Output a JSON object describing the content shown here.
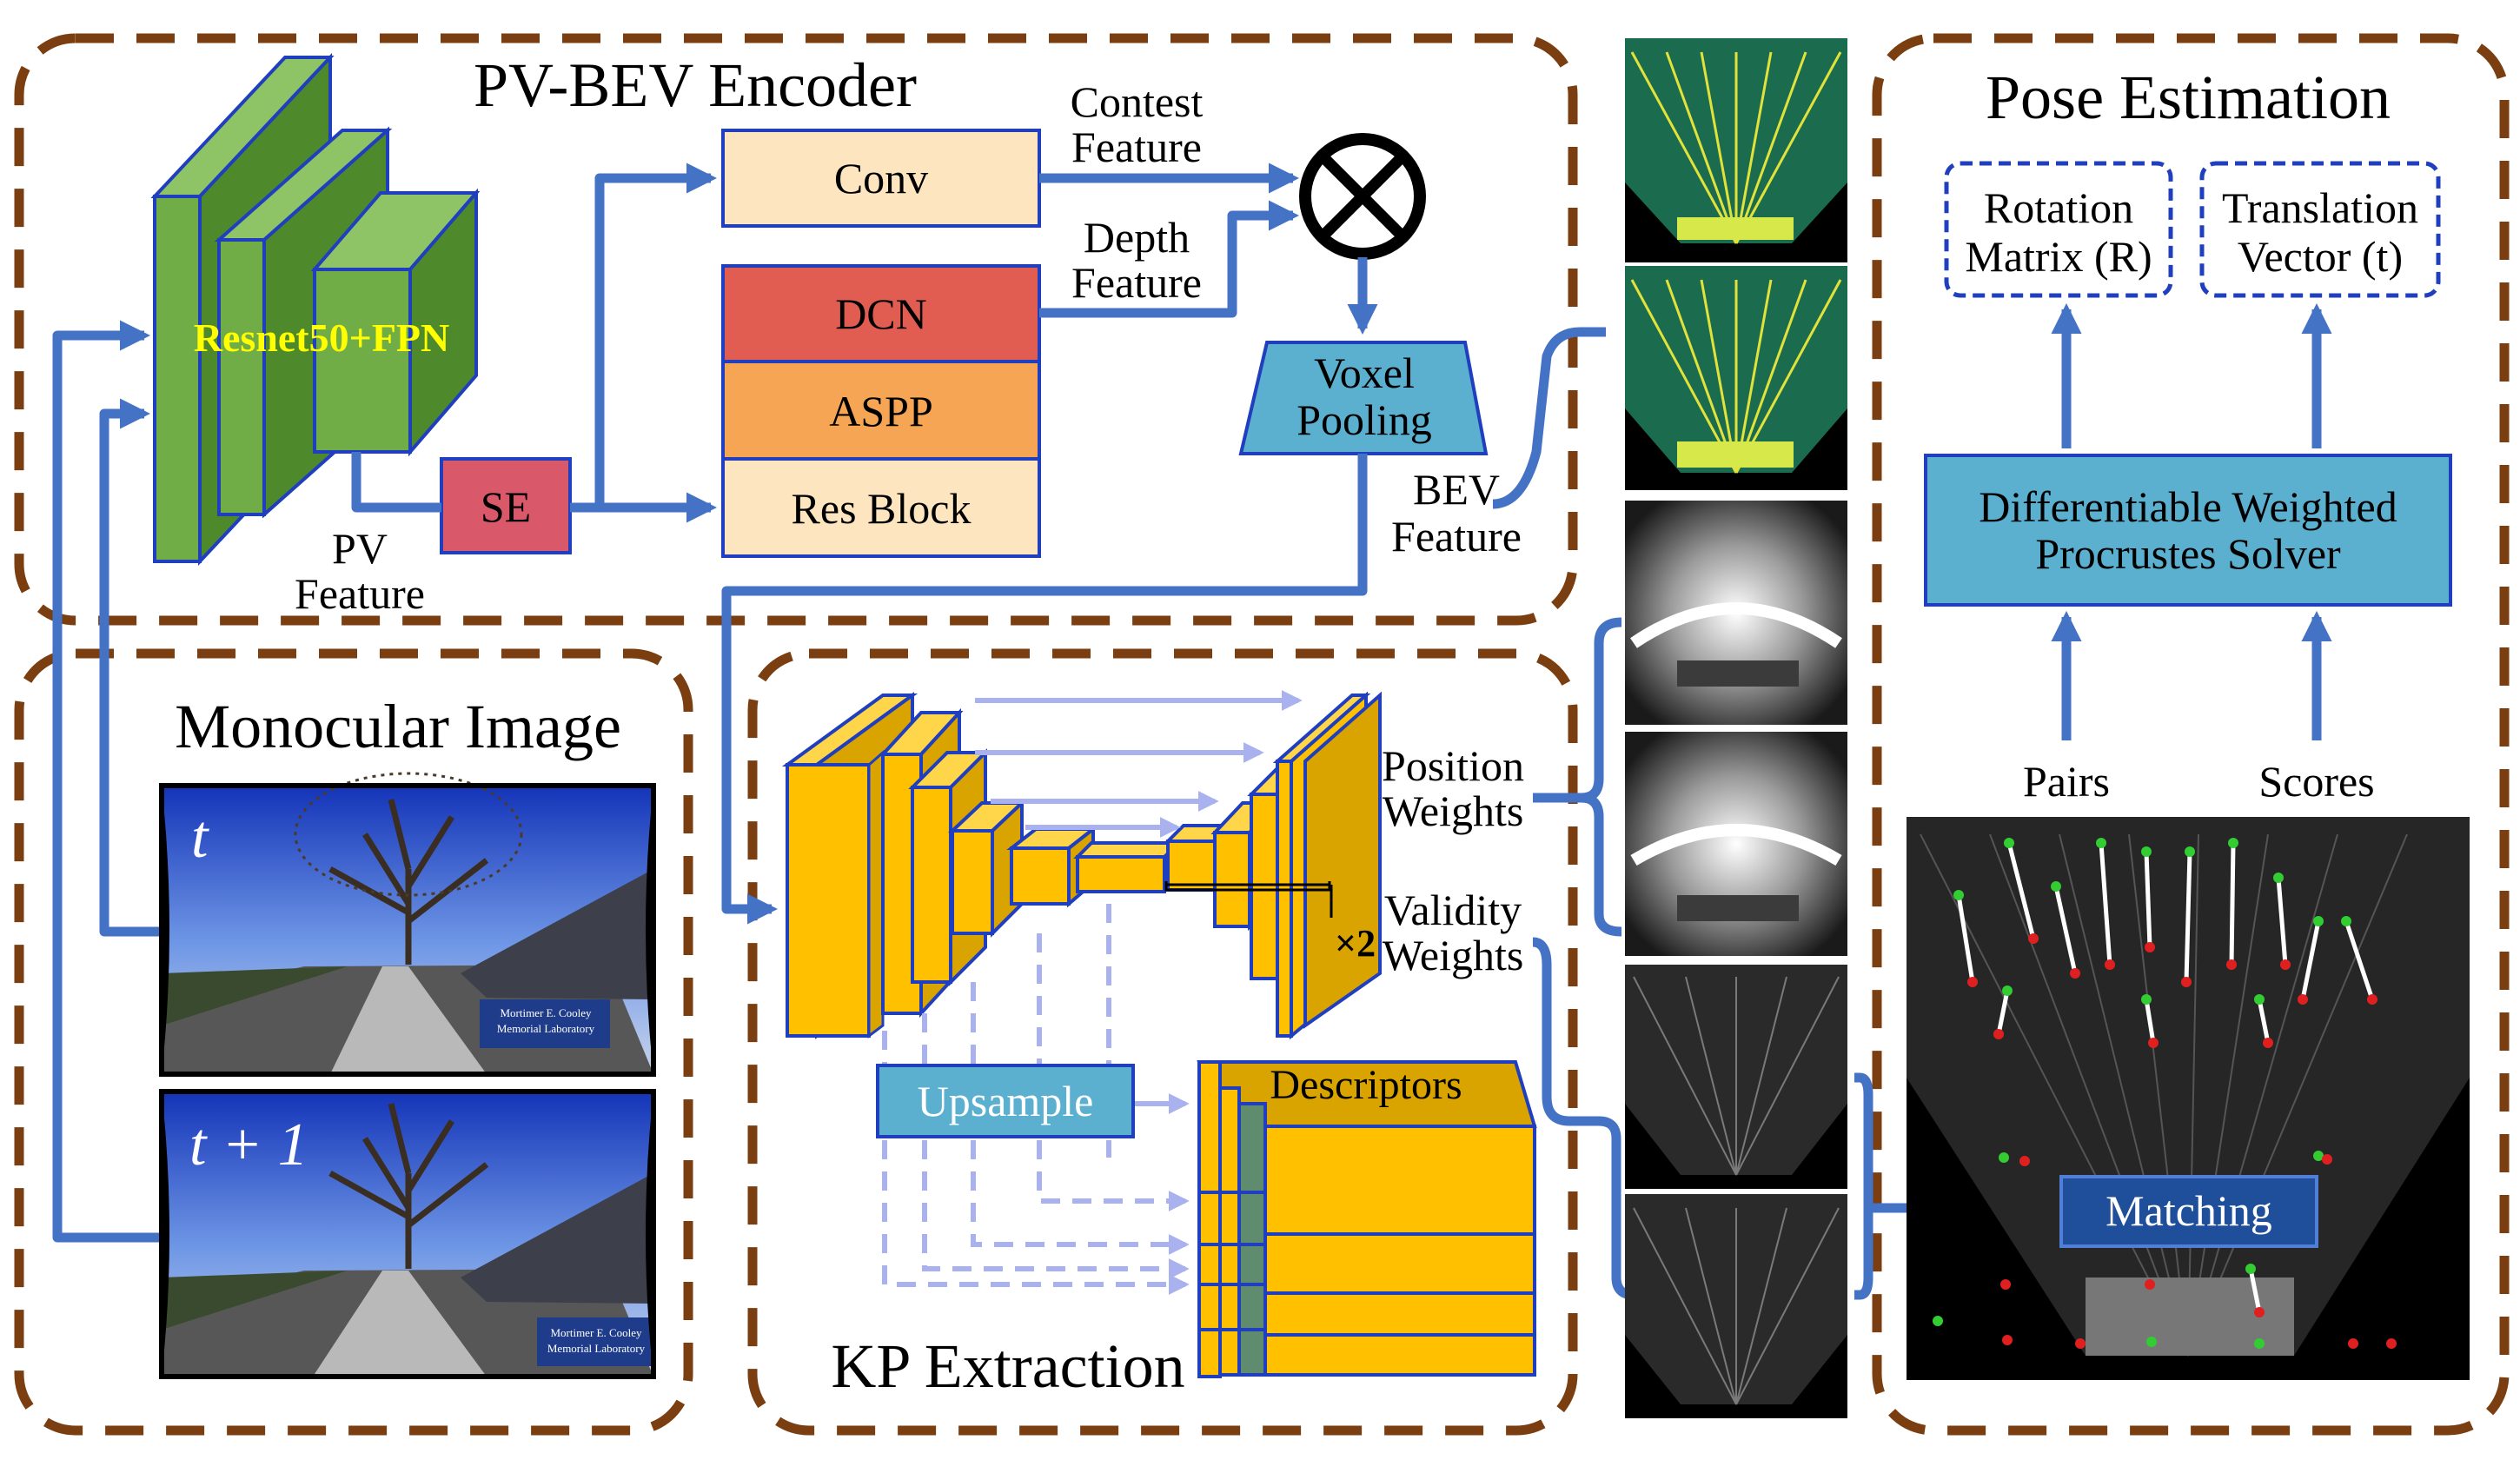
{
  "colors": {
    "frame": "#7a3e10",
    "arrow": "#4472c4",
    "arrow_light": "#a9b2ef",
    "resnet_green": "#70ad47",
    "conv_fill": "#fde5bf",
    "dcn": "#e15d52",
    "aspp": "#f5a554",
    "se": "#d9586a",
    "voxel": "#5bb0d0",
    "solver": "#5bb0d0",
    "unet_yellow": "#ffc000",
    "dashed_box": "#1f3fbf"
  },
  "encoder": {
    "title": "PV-BEV Encoder",
    "backbone_label": "Resnet50+FPN",
    "se_label": "SE",
    "pv_feature_line1": "PV",
    "pv_feature_line2": "Feature",
    "conv_label": "Conv",
    "dcn_label": "DCN",
    "aspp_label": "ASPP",
    "resblock_label": "Res Block",
    "context_line1": "Contest",
    "context_line2": "Feature",
    "depth_line1": "Depth",
    "depth_line2": "Feature",
    "voxel_line1": "Voxel",
    "voxel_line2": "Pooling",
    "bev_line1": "BEV",
    "bev_line2": "Feature"
  },
  "monocular": {
    "title": "Monocular Image",
    "frame_t": "t",
    "frame_t1": "t + 1",
    "sign_line1": "Mortimer E. Cooley",
    "sign_line2": "Memorial Laboratory"
  },
  "kp": {
    "title": "KP Extraction",
    "position_line1": "Position",
    "position_line2": "Weights",
    "validity_line1": "Validity",
    "validity_line2": "Weights",
    "times2": "×2",
    "upsample_label": "Upsample",
    "descriptors_label": "Descriptors"
  },
  "pose": {
    "title": "Pose Estimation",
    "rotation_line1": "Rotation",
    "rotation_line2": "Matrix (R)",
    "translation_line1": "Translation",
    "translation_line2": "Vector (t)",
    "solver_line1": "Differentiable Weighted",
    "solver_line2": "Procrustes Solver",
    "pairs_label": "Pairs",
    "scores_label": "Scores",
    "matching_label": "Matching"
  },
  "icons": [
    "multiply-circle-icon",
    "bev-feature-image",
    "position-weights-image",
    "validity-weights-image",
    "road-scene-photo",
    "matching-points-image"
  ]
}
